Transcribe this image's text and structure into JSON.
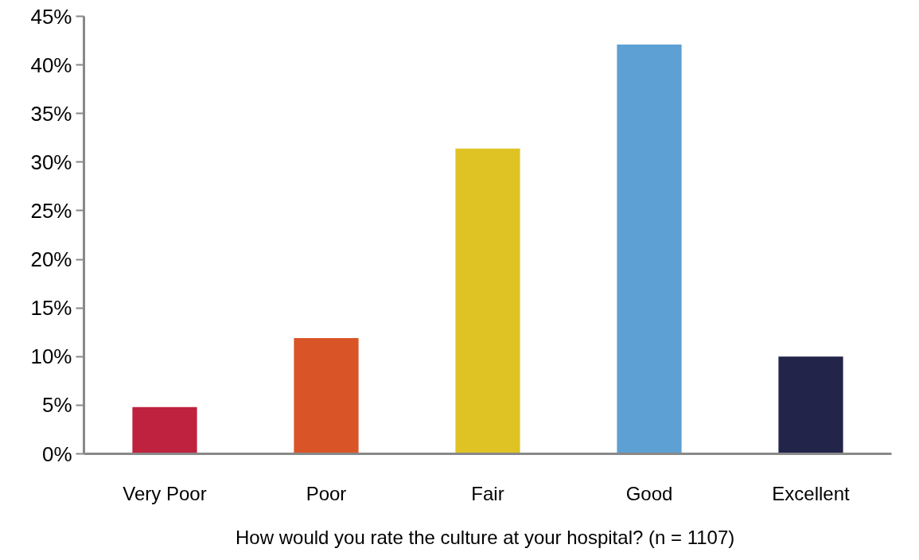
{
  "chart_data": {
    "type": "bar",
    "xlabel": "How would you rate the culture  at your hospital? (n = 1107)",
    "categories": [
      "Very Poor",
      "Poor",
      "Fair",
      "Good",
      "Excellent"
    ],
    "values": [
      4.8,
      11.9,
      31.4,
      42.1,
      10.0
    ],
    "colors": [
      "#be223e",
      "#d95528",
      "#dfc325",
      "#5da0d3",
      "#23244a"
    ],
    "ylim": [
      0,
      45
    ],
    "yticks": [
      {
        "value": 0,
        "label": "0%"
      },
      {
        "value": 5,
        "label": "5%"
      },
      {
        "value": 10,
        "label": "10%"
      },
      {
        "value": 15,
        "label": "15%"
      },
      {
        "value": 20,
        "label": "20%"
      },
      {
        "value": 25,
        "label": "25%"
      },
      {
        "value": 30,
        "label": "30%"
      },
      {
        "value": 35,
        "label": "35%"
      },
      {
        "value": 40,
        "label": "40%"
      },
      {
        "value": 45,
        "label": "45%"
      }
    ],
    "grid": false
  }
}
